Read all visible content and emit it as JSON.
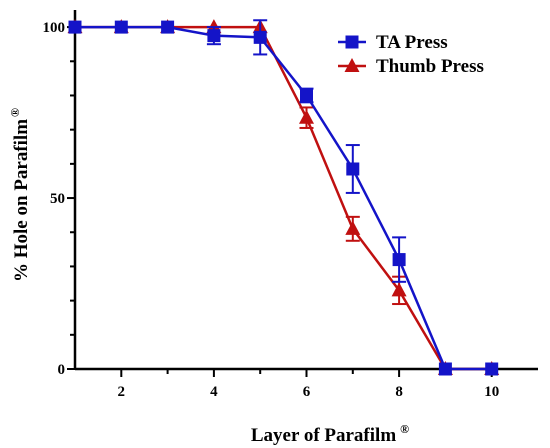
{
  "chart_data": {
    "type": "line",
    "title": "",
    "xlabel": "Layer of Parafilm",
    "xlabel_sup": "®",
    "ylabel": "% Hole on Parafilm",
    "ylabel_sup": "®",
    "xlim": [
      1,
      11
    ],
    "ylim": [
      0,
      105
    ],
    "xticks": [
      2,
      4,
      6,
      8,
      10
    ],
    "yticks": [
      0,
      50,
      100
    ],
    "grid": false,
    "legend_position": "top-right",
    "series": [
      {
        "name": "TA Press",
        "color": "#1414c8",
        "marker": "square",
        "x": [
          1,
          2,
          3,
          4,
          5,
          6,
          7,
          8,
          9,
          10
        ],
        "y": [
          100,
          100,
          100,
          97.5,
          97,
          80,
          58.5,
          32,
          0,
          0
        ],
        "err": [
          0,
          0,
          0,
          2.5,
          5,
          2,
          7,
          6.5,
          0,
          0
        ]
      },
      {
        "name": "Thumb Press",
        "color": "#c01010",
        "marker": "triangle",
        "x": [
          1,
          2,
          3,
          4,
          5,
          6,
          7,
          8,
          9,
          10
        ],
        "y": [
          100,
          100,
          100,
          100,
          100,
          73.5,
          41,
          23,
          0,
          0
        ],
        "err": [
          0,
          0,
          0,
          0,
          0,
          3,
          3.5,
          4,
          0,
          0
        ]
      }
    ]
  }
}
